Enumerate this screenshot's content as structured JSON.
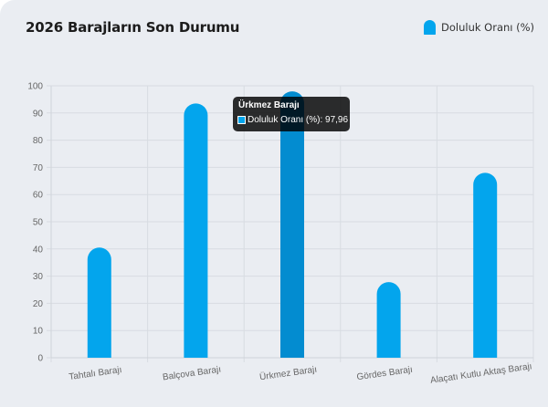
{
  "card": {
    "title": "2026 Barajların Son Durumu"
  },
  "legend": {
    "label": "Doluluk Oranı (%)",
    "color": "#03a5ed"
  },
  "tooltip": {
    "title": "Ürkmez Barajı",
    "text": "Doluluk Oranı (%): 97,96",
    "color": "#03a5ed"
  },
  "colors": {
    "bar": "#03a5ed",
    "bar_hover": "#038cd0",
    "grid": "#d8dce2",
    "background": "#eaedf2"
  },
  "chart_data": {
    "type": "bar",
    "title": "2026 Barajların Son Durumu",
    "xlabel": "",
    "ylabel": "",
    "categories": [
      "Tahtalı Barajı",
      "Balçova Barajı",
      "Ürkmez Barajı",
      "Gördes Barajı",
      "Alaçatı Kutlu Aktaş Barajı"
    ],
    "series": [
      {
        "name": "Doluluk Oranı (%)",
        "values": [
          40.5,
          93.5,
          97.96,
          27.8,
          68.0
        ]
      }
    ],
    "ylim": [
      0,
      100
    ],
    "yticks": [
      0,
      10,
      20,
      30,
      40,
      50,
      60,
      70,
      80,
      90,
      100
    ],
    "grid": true,
    "legend_position": "top-right",
    "highlighted": {
      "category": "Ürkmez Barajı",
      "value": "97,96"
    }
  }
}
